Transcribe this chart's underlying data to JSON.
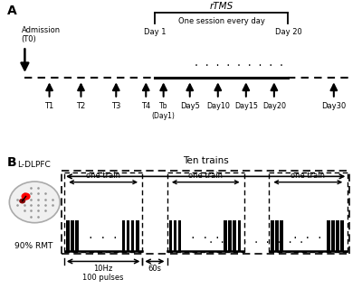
{
  "fig_width": 4.0,
  "fig_height": 3.3,
  "dpi": 100,
  "panel_A_label": "A",
  "panel_B_label": "B",
  "admission_label": "Admission\n(T0)",
  "rtms_label": "rTMS",
  "one_session_label": "One session every day",
  "day1_label": "Day 1",
  "day20_label": "Day 20",
  "ten_trains_label": "Ten trains",
  "one_train_label": "one train",
  "ldlpfc_label": "L-DLPFC",
  "rmt_label": "90% RMT",
  "freq_label": "10Hz\n100 pulses",
  "gap_label": "60s",
  "bottom_labels": [
    "T1",
    "T2",
    "T3",
    "T4",
    "Tb\n(Day1)",
    "Day5",
    "Day10",
    "Day15",
    "Day20",
    "Day30"
  ]
}
